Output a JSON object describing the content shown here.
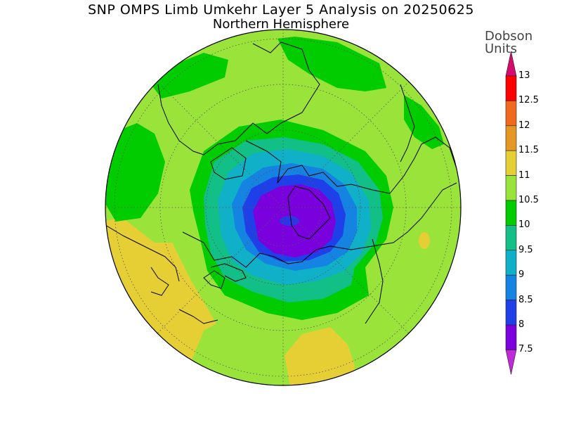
{
  "title": "SNP OMPS Limb Umkehr Layer 5 Analysis on 20250625",
  "subtitle": "Northern Hemisphere",
  "colorbar": {
    "units_line1": "Dobson",
    "units_line2": "Units",
    "ticks": [
      "13",
      "12.5",
      "12",
      "11.5",
      "11",
      "10.5",
      "10",
      "9.5",
      "9",
      "8.5",
      "8",
      "7.5"
    ],
    "colors": [
      "#d60b6e",
      "#ff0000",
      "#ef6a1f",
      "#e59726",
      "#e6cf35",
      "#9ae33b",
      "#00cc00",
      "#12bf86",
      "#0fb0c8",
      "#1483e2",
      "#1f3fe8",
      "#7a00de",
      "#bf2bd8"
    ]
  },
  "map_colors": {
    "band_11": "#e6cf35",
    "band_10_5": "#9ae33b",
    "band_10": "#00cc00",
    "band_9_5": "#12bf86",
    "band_9": "#0fb0c8",
    "band_8_5": "#1483e2",
    "band_8": "#1f3fe8",
    "band_7_5": "#7a00de"
  }
}
